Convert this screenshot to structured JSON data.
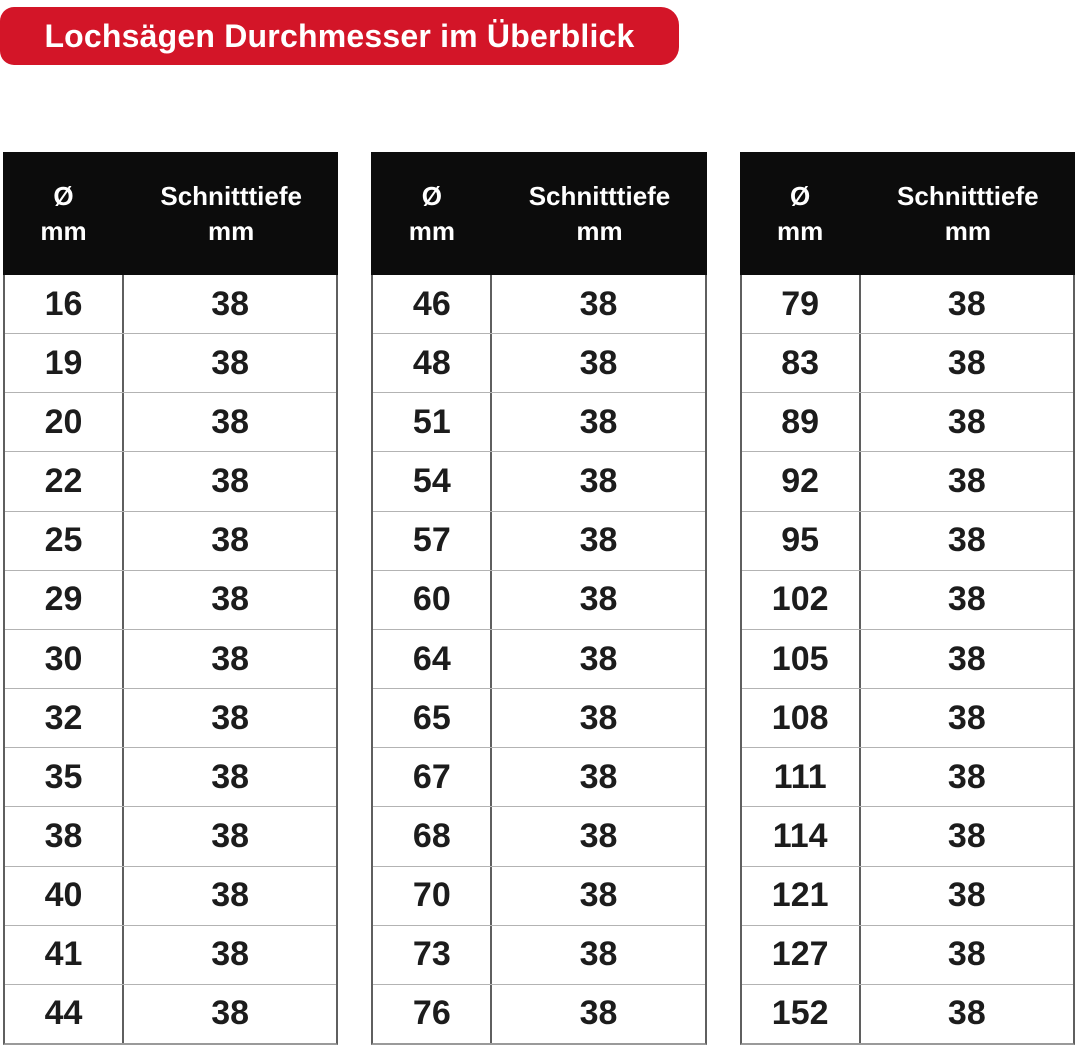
{
  "banner": {
    "title": "Lochsägen Durchmesser im Überblick",
    "bg_color": "#d31528",
    "text_color": "#ffffff"
  },
  "header": {
    "diameter_line1": "Ø",
    "diameter_line2": "mm",
    "depth_line1": "Schnitttiefe",
    "depth_line2": "mm"
  },
  "chart_data": {
    "type": "table",
    "title": "Lochsägen Durchmesser im Überblick",
    "columns": [
      "Ø mm",
      "Schnitttiefe mm"
    ],
    "layout": "three side-by-side tables, black header row, thin gray row separators",
    "tables": [
      {
        "rows": [
          [
            16,
            38
          ],
          [
            19,
            38
          ],
          [
            20,
            38
          ],
          [
            22,
            38
          ],
          [
            25,
            38
          ],
          [
            29,
            38
          ],
          [
            30,
            38
          ],
          [
            32,
            38
          ],
          [
            35,
            38
          ],
          [
            38,
            38
          ],
          [
            40,
            38
          ],
          [
            41,
            38
          ],
          [
            44,
            38
          ]
        ]
      },
      {
        "rows": [
          [
            46,
            38
          ],
          [
            48,
            38
          ],
          [
            51,
            38
          ],
          [
            54,
            38
          ],
          [
            57,
            38
          ],
          [
            60,
            38
          ],
          [
            64,
            38
          ],
          [
            65,
            38
          ],
          [
            67,
            38
          ],
          [
            68,
            38
          ],
          [
            70,
            38
          ],
          [
            73,
            38
          ],
          [
            76,
            38
          ]
        ]
      },
      {
        "rows": [
          [
            79,
            38
          ],
          [
            83,
            38
          ],
          [
            89,
            38
          ],
          [
            92,
            38
          ],
          [
            95,
            38
          ],
          [
            102,
            38
          ],
          [
            105,
            38
          ],
          [
            108,
            38
          ],
          [
            111,
            38
          ],
          [
            114,
            38
          ],
          [
            121,
            38
          ],
          [
            127,
            38
          ],
          [
            152,
            38
          ]
        ]
      }
    ]
  },
  "colors": {
    "header_bg": "#0c0c0c",
    "header_text": "#ffffff",
    "body_text": "#1c1c1c",
    "vertical_border": "#5f5f5f",
    "horizontal_border": "#b3b3b3"
  }
}
